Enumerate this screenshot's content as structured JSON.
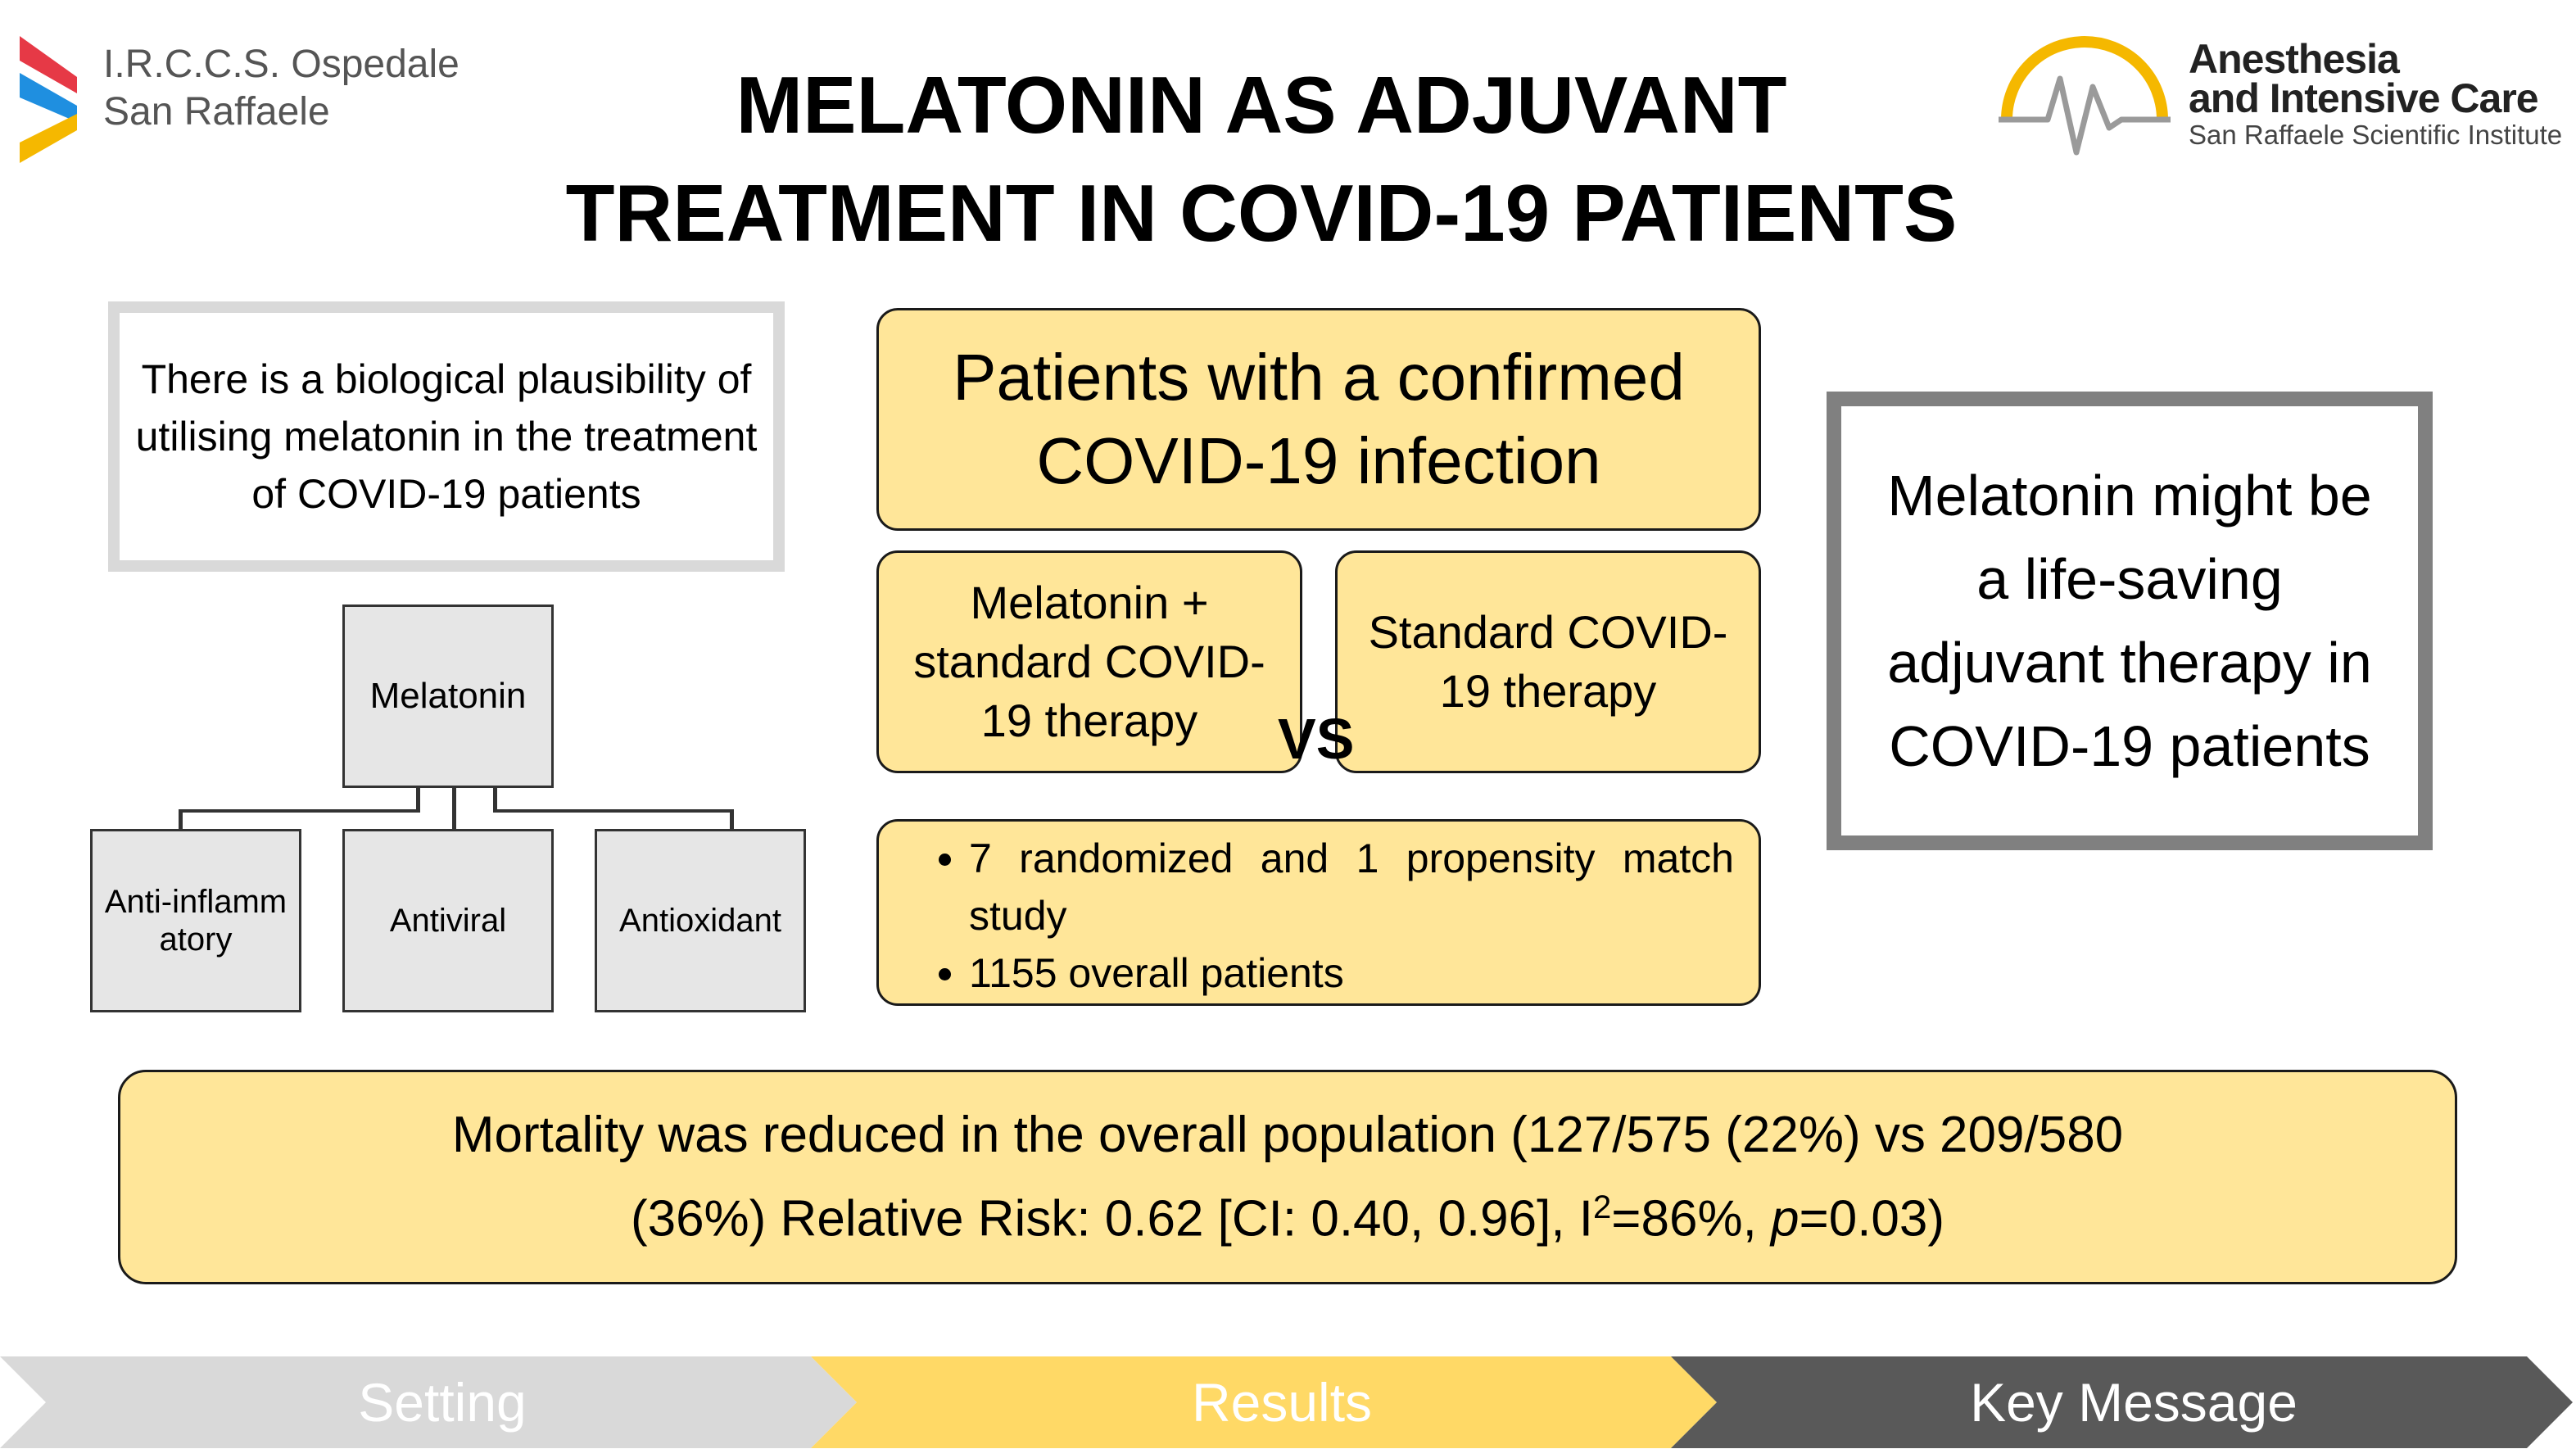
{
  "logo_left": {
    "line1": "I.R.C.C.S. Ospedale",
    "line2": "San Raffaele"
  },
  "logo_right": {
    "line1": "Anesthesia",
    "line2": "and Intensive Care",
    "line3": "San Raffaele Scientific Institute"
  },
  "title": {
    "line1": "MELATONIN AS ADJUVANT",
    "line2": "TREATMENT IN COVID-19 PATIENTS"
  },
  "setting": {
    "text": "There is a biological plausibility of utilising melatonin in the treatment of COVID-19 patients"
  },
  "tree": {
    "root": "Melatonin",
    "children": [
      "Anti-inflammatory",
      "Antiviral",
      "Antioxidant"
    ]
  },
  "results": {
    "population": "Patients with a confirmed COVID-19 infection",
    "arm_left": "Melatonin + standard COVID-19 therapy",
    "arm_right": "Standard COVID-19 therapy",
    "vs": "VS",
    "bullets": [
      "7 randomized and 1 propensity match study",
      "1155 overall patients"
    ]
  },
  "key_message": "Melatonin might be a life-saving adjuvant therapy in COVID-19 patients",
  "mortality": {
    "line1": "Mortality was reduced in the overall population (127/575 (22%) vs 209/580",
    "line2_a": "(36%) Relative Risk: 0.62 [CI: 0.40, 0.96], I",
    "line2_sup": "2",
    "line2_b": "=86%, ",
    "line2_p": "p",
    "line2_c": "=0.03)"
  },
  "nav": {
    "setting": "Setting",
    "results": "Results",
    "key_message": "Key Message"
  },
  "colors": {
    "yellow": "#ffe699",
    "nav_gray_light": "#d9d9d9",
    "nav_yellow": "#ffd966",
    "nav_gray_dark": "#595959",
    "logo_red": "#e63946",
    "logo_blue": "#1f8fe0",
    "logo_yellow": "#f5b800"
  }
}
